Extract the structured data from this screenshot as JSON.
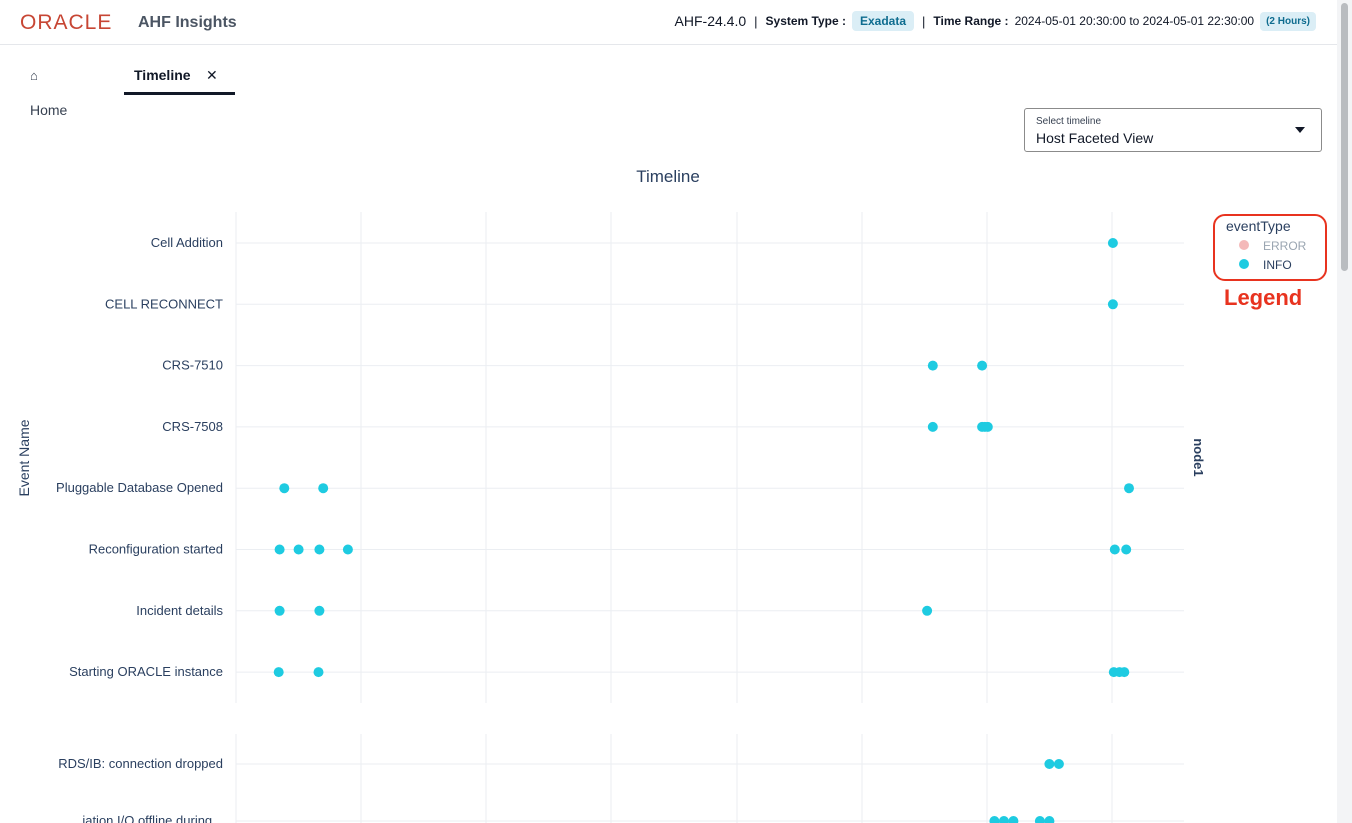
{
  "header": {
    "logo": "ORACLE",
    "app_name": "AHF Insights",
    "version": "AHF-24.4.0",
    "separator": "|",
    "system_type_label": "System Type :",
    "system_type_value": "Exadata",
    "time_range_label": "Time Range :",
    "time_range_value": "2024-05-01 20:30:00 to 2024-05-01 22:30:00",
    "time_range_duration": "(2 Hours)"
  },
  "tabs": {
    "home_icon": "⌂",
    "home_label": "Home",
    "timeline_label": "Timeline",
    "close_icon": "✕"
  },
  "select": {
    "label": "Select timeline",
    "value": "Host Faceted View"
  },
  "colors": {
    "info": "#1ecbe1",
    "error": "#f4b9b9",
    "annotation": "#e8331f"
  },
  "annotation": {
    "callout": "Legend"
  },
  "chart_data": {
    "type": "scatter",
    "title": "Timeline",
    "ylabel": "Event Name",
    "xlabel": "",
    "grid": true,
    "legend": {
      "title": "eventType",
      "placement": "top-right",
      "entries": [
        {
          "name": "ERROR",
          "color": "#f4b9b9",
          "hidden": true
        },
        {
          "name": "INFO",
          "color": "#1ecbe1",
          "hidden": false
        }
      ]
    },
    "facets": [
      {
        "label": "node1",
        "categories": [
          "Cell Addition",
          "CELL RECONNECT",
          "CRS-7510",
          "CRS-7508",
          "Pluggable Database Opened",
          "Reconfiguration started",
          "Incident details",
          "Starting ORACLE instance"
        ],
        "series": [
          {
            "name": "INFO",
            "points": [
              {
                "y": "Cell Addition",
                "x": 0.925
              },
              {
                "y": "CELL RECONNECT",
                "x": 0.925
              },
              {
                "y": "CRS-7510",
                "x": 0.735
              },
              {
                "y": "CRS-7510",
                "x": 0.787
              },
              {
                "y": "CRS-7508",
                "x": 0.735
              },
              {
                "y": "CRS-7508",
                "x": 0.787
              },
              {
                "y": "CRS-7508",
                "x": 0.79
              },
              {
                "y": "CRS-7508",
                "x": 0.793
              },
              {
                "y": "Pluggable Database Opened",
                "x": 0.051
              },
              {
                "y": "Pluggable Database Opened",
                "x": 0.092
              },
              {
                "y": "Pluggable Database Opened",
                "x": 0.942
              },
              {
                "y": "Reconfiguration started",
                "x": 0.046
              },
              {
                "y": "Reconfiguration started",
                "x": 0.066
              },
              {
                "y": "Reconfiguration started",
                "x": 0.088
              },
              {
                "y": "Reconfiguration started",
                "x": 0.118
              },
              {
                "y": "Reconfiguration started",
                "x": 0.927
              },
              {
                "y": "Reconfiguration started",
                "x": 0.939
              },
              {
                "y": "Incident details",
                "x": 0.046
              },
              {
                "y": "Incident details",
                "x": 0.088
              },
              {
                "y": "Incident details",
                "x": 0.729
              },
              {
                "y": "Starting ORACLE instance",
                "x": 0.045
              },
              {
                "y": "Starting ORACLE instance",
                "x": 0.087
              },
              {
                "y": "Starting ORACLE instance",
                "x": 0.926
              },
              {
                "y": "Starting ORACLE instance",
                "x": 0.932
              },
              {
                "y": "Starting ORACLE instance",
                "x": 0.937
              }
            ]
          }
        ]
      },
      {
        "label": "",
        "categories": [
          "RDS/IB: connection dropped",
          "...iation I/O offline during..."
        ],
        "series": [
          {
            "name": "INFO",
            "points": [
              {
                "y": "RDS/IB: connection dropped",
                "x": 0.858
              },
              {
                "y": "RDS/IB: connection dropped",
                "x": 0.868
              },
              {
                "y": "...iation I/O offline during...",
                "x": 0.8
              },
              {
                "y": "...iation I/O offline during...",
                "x": 0.81
              },
              {
                "y": "...iation I/O offline during...",
                "x": 0.82
              },
              {
                "y": "...iation I/O offline during...",
                "x": 0.848
              },
              {
                "y": "...iation I/O offline during...",
                "x": 0.858
              }
            ]
          }
        ]
      }
    ]
  }
}
